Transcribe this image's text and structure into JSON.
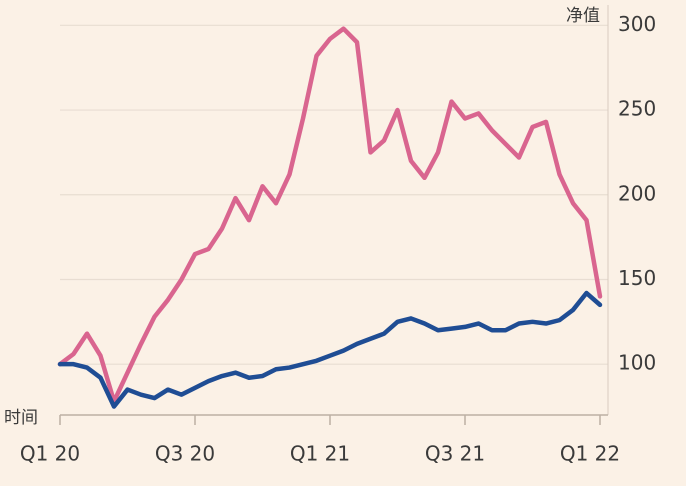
{
  "chart_data": {
    "type": "line",
    "y_label": "净值",
    "x_label": "时间",
    "x": [
      2020.0,
      2020.05,
      2020.1,
      2020.15,
      2020.2,
      2020.25,
      2020.3,
      2020.35,
      2020.4,
      2020.45,
      2020.5,
      2020.55,
      2020.6,
      2020.65,
      2020.7,
      2020.75,
      2020.8,
      2020.85,
      2020.9,
      2020.95,
      2021.0,
      2021.05,
      2021.1,
      2021.15,
      2021.2,
      2021.25,
      2021.3,
      2021.35,
      2021.4,
      2021.45,
      2021.5,
      2021.55,
      2021.6,
      2021.65,
      2021.7,
      2021.75,
      2021.8,
      2021.85,
      2021.9,
      2021.95,
      2022.0
    ],
    "series": [
      {
        "color": "#d9658f",
        "values": [
          100,
          106,
          118,
          105,
          78,
          95,
          112,
          128,
          138,
          150,
          165,
          168,
          180,
          198,
          185,
          205,
          195,
          212,
          245,
          282,
          292,
          298,
          290,
          225,
          232,
          250,
          220,
          210,
          225,
          255,
          245,
          248,
          238,
          230,
          222,
          240,
          243,
          212,
          195,
          185,
          140
        ]
      },
      {
        "color": "#1f4d94",
        "values": [
          100,
          100,
          98,
          92,
          75,
          85,
          82,
          80,
          85,
          82,
          86,
          90,
          93,
          95,
          92,
          93,
          97,
          98,
          100,
          102,
          105,
          108,
          112,
          115,
          118,
          125,
          127,
          124,
          120,
          121,
          122,
          124,
          120,
          120,
          124,
          125,
          124,
          126,
          132,
          142,
          135
        ]
      }
    ],
    "xlim": [
      2020.0,
      2022.0
    ],
    "xticks": [
      {
        "value": 2020.0,
        "label": "Q1 20"
      },
      {
        "value": 2020.5,
        "label": "Q3 20"
      },
      {
        "value": 2021.0,
        "label": "Q1 21"
      },
      {
        "value": 2021.5,
        "label": "Q3 21"
      },
      {
        "value": 2022.0,
        "label": "Q1 22"
      }
    ],
    "ylim": [
      70,
      312
    ],
    "yticks": [
      100,
      150,
      200,
      250,
      300
    ],
    "grid": true
  }
}
